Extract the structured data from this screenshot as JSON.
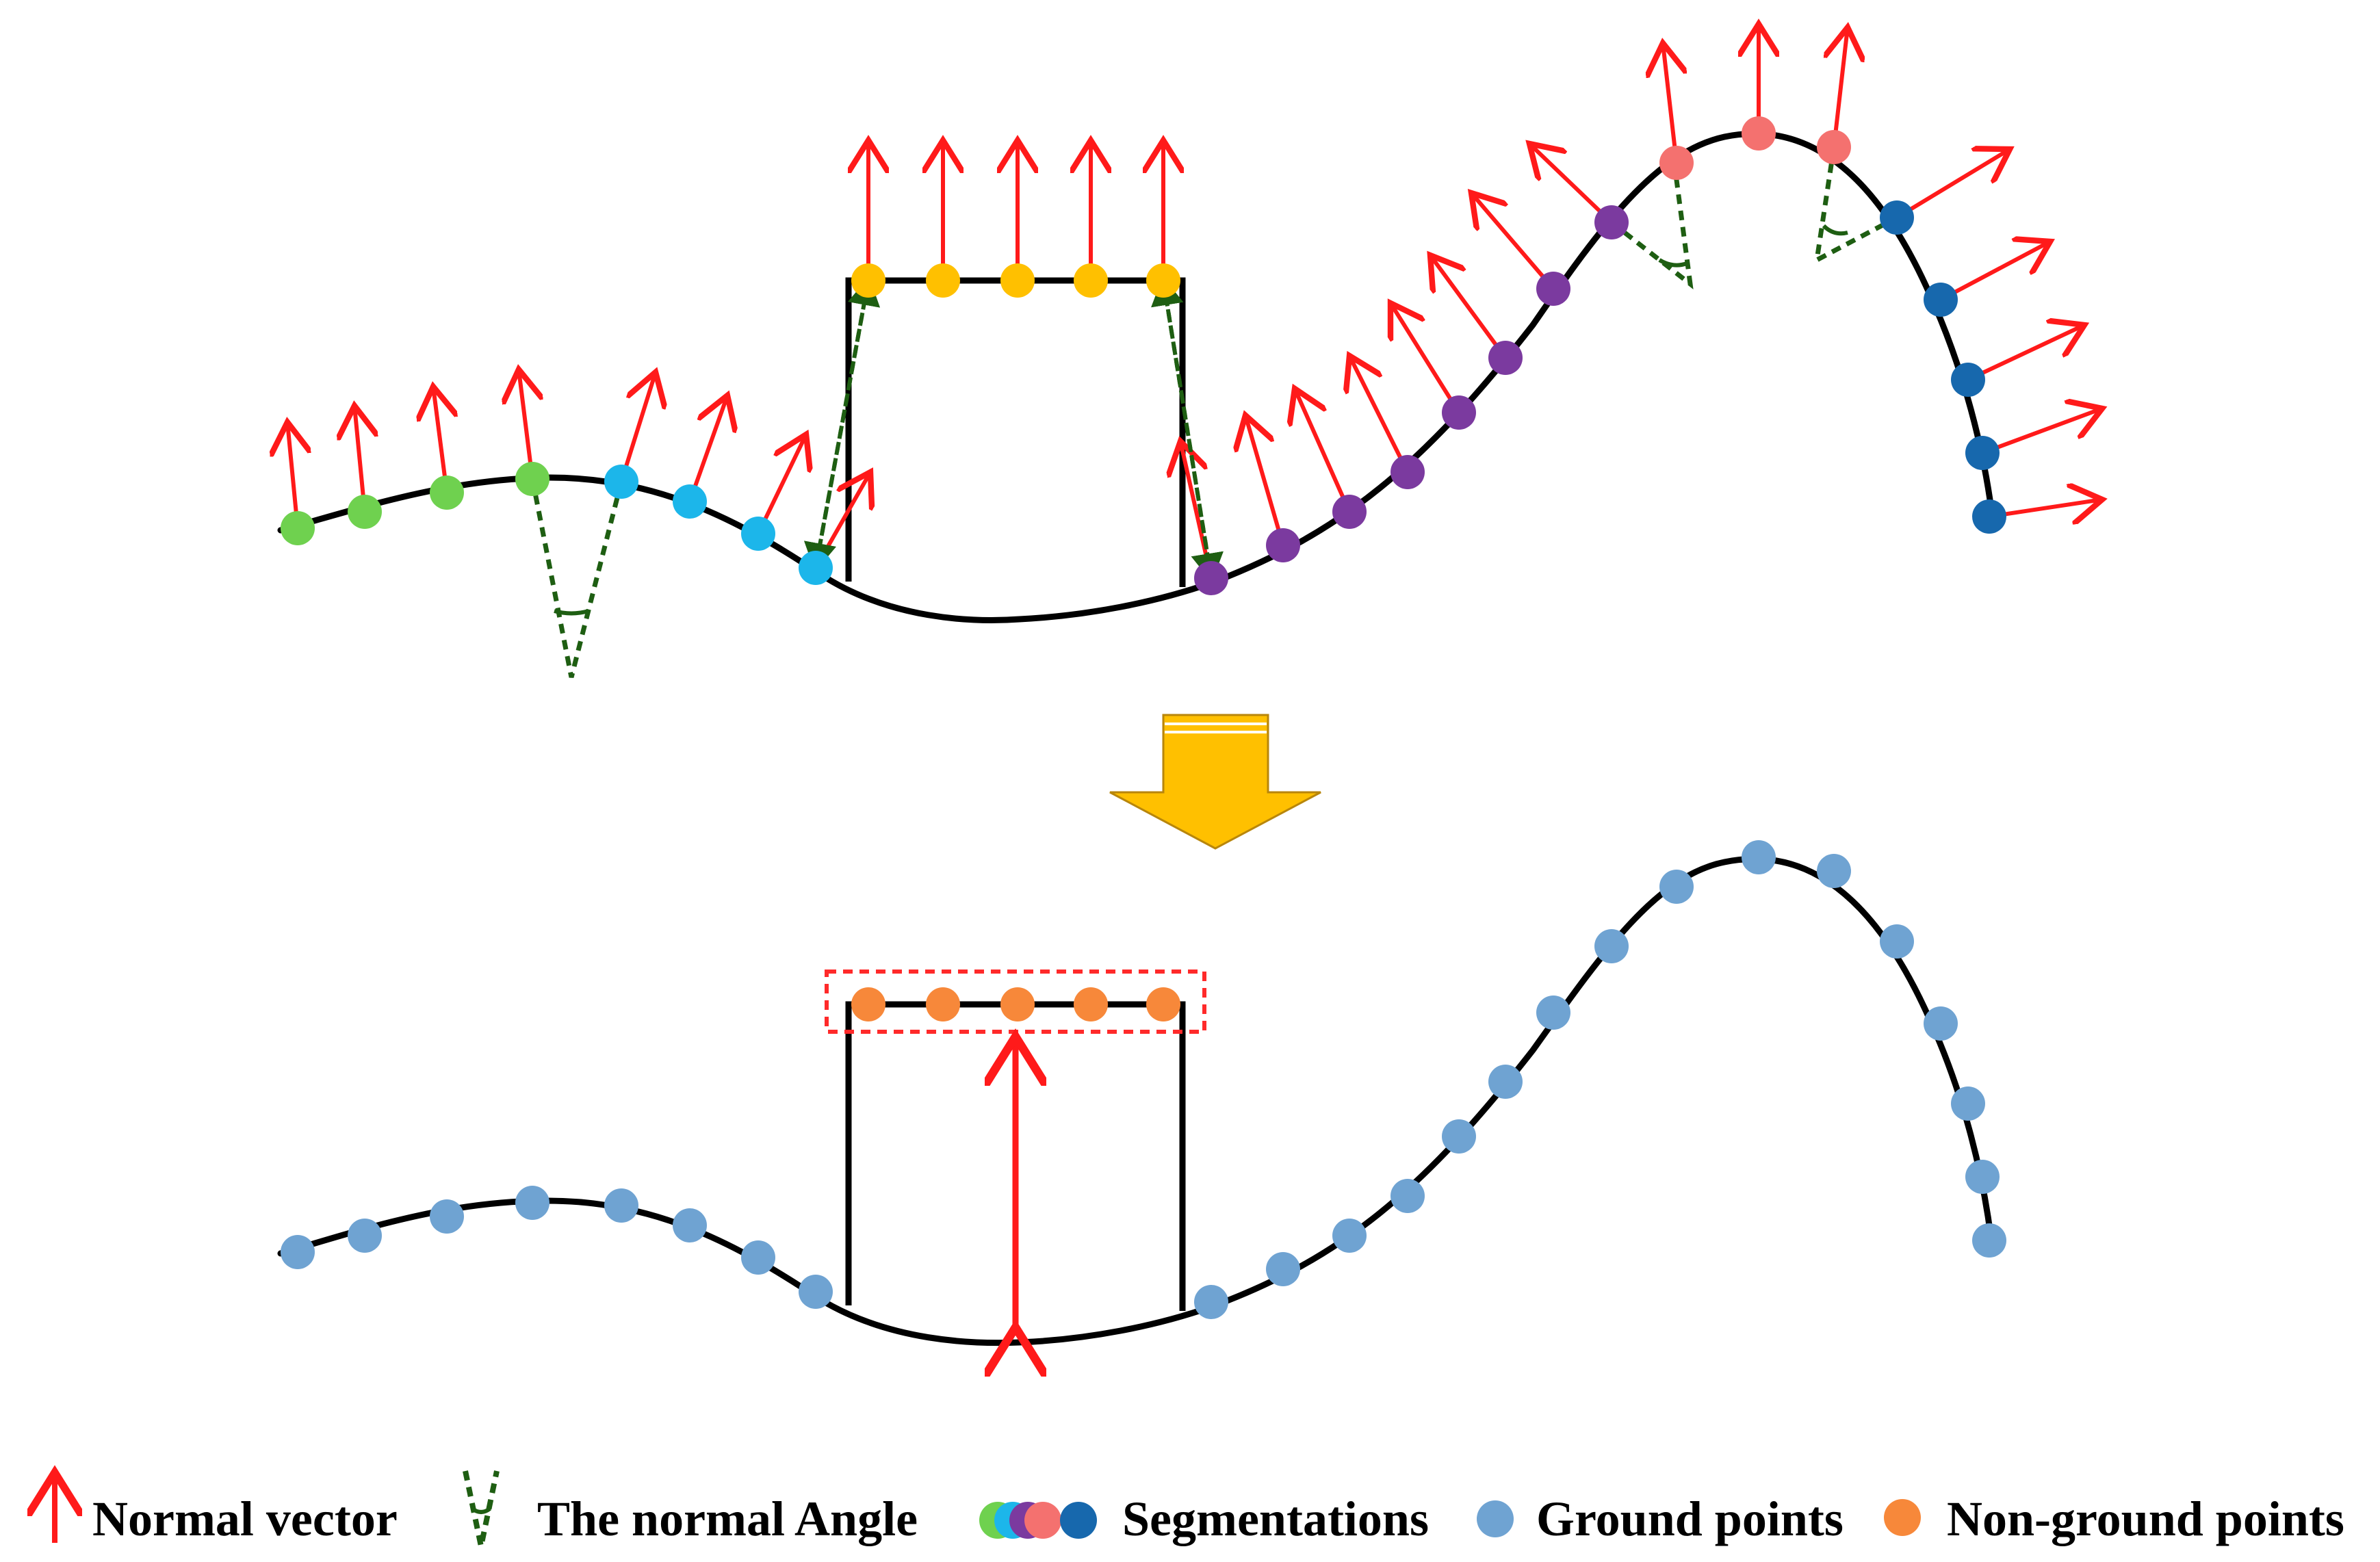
{
  "colors": {
    "normal_vector": "#ff1a1a",
    "normal_angle": "#1e5e12",
    "curve": "#000000",
    "ground_point": "#6fa3d2",
    "non_ground_point": "#f7883a",
    "transition_arrow": "#ffc000",
    "highlight_box": "#ff2a2a",
    "segment_green": "#6fd14f",
    "segment_cyan": "#1cb6ea",
    "segment_purple": "#7b3a9f",
    "segment_salmon": "#f4716f",
    "segment_blue": "#1768ad",
    "segment_yellow": "#ffc000"
  },
  "icons": {
    "normal_vector": "red-up-arrow-icon",
    "normal_angle": "dashed-green-v-angle-icon",
    "segmentations": "overlapping-colored-dots-icon",
    "ground_points": "blue-dot-icon",
    "non_ground_points": "orange-dot-icon",
    "transition": "down-arrow-icon"
  },
  "legend": {
    "normal_vector": "Normal vector",
    "normal_angle": "The normal Angle",
    "segmentations": "Segmentations",
    "ground_points": "Ground points",
    "non_ground_points": "Non-ground points"
  }
}
